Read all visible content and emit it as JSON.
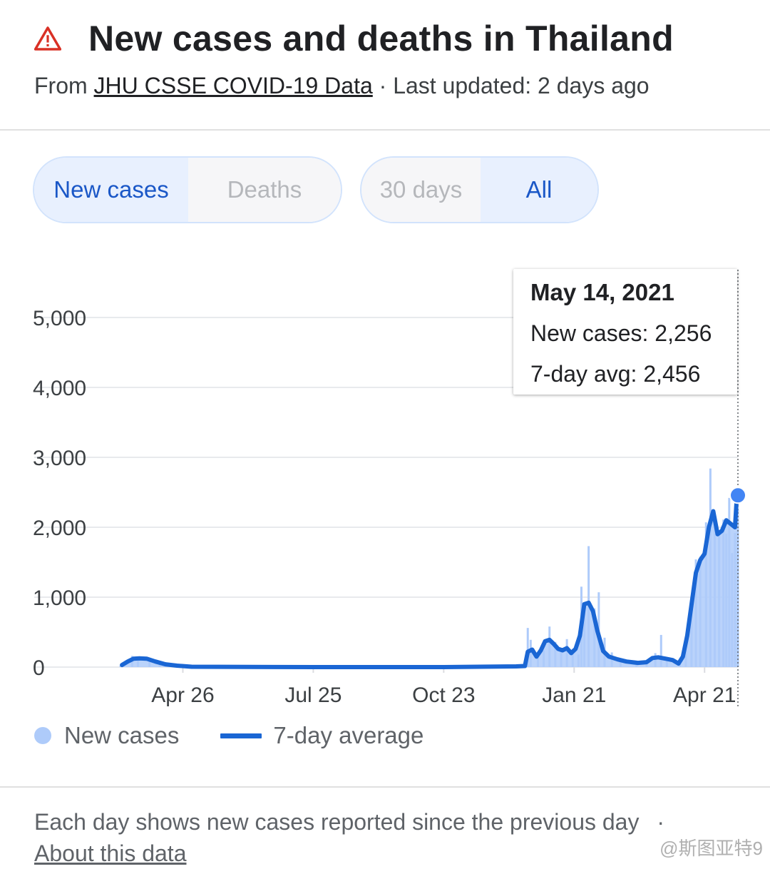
{
  "header": {
    "title": "New cases and deaths in Thailand",
    "source_prefix": "From",
    "source_link": "JHU CSSE COVID-19 Data",
    "updated": "· Last updated: 2 days ago"
  },
  "metric_toggle": {
    "options": [
      "New cases",
      "Deaths"
    ],
    "selected": "New cases"
  },
  "range_toggle": {
    "options": [
      "30 days",
      "All"
    ],
    "selected": "All"
  },
  "tooltip": {
    "date": "May 14, 2021",
    "new_cases": "New cases: 2,256",
    "avg": "7-day avg: 2,456"
  },
  "legend": {
    "new_cases": "New cases",
    "avg": "7-day average"
  },
  "footer": {
    "note": "Each day shows new cases reported since the previous day",
    "separator": "·",
    "link": "About this data"
  },
  "watermark": "@斯图亚特9",
  "colors": {
    "bars": "#aecbfa",
    "line": "#1a66d4",
    "accent": "#1a57c7",
    "warning": "#d93025"
  },
  "chart_data": {
    "type": "area",
    "title": "",
    "xlabel": "",
    "ylabel": "",
    "ylim": [
      0,
      5000
    ],
    "y_ticks": [
      0,
      1000,
      2000,
      3000,
      4000,
      5000
    ],
    "y_tick_labels": [
      "0",
      "1,000",
      "2,000",
      "3,000",
      "4,000",
      "5,000"
    ],
    "x_ticks": [
      "2020-04-26",
      "2020-07-25",
      "2020-10-23",
      "2021-01-21",
      "2021-04-21"
    ],
    "x_tick_labels": [
      "Apr 26",
      "Jul 25",
      "Oct 23",
      "Jan 21",
      "Apr 21"
    ],
    "grid": true,
    "legend_position": "bottom-left",
    "selected_date": "2021-05-14",
    "series": [
      {
        "name": "New cases",
        "kind": "bars",
        "points": [
          [
            "2020-03-14",
            20
          ],
          [
            "2020-03-22",
            160
          ],
          [
            "2020-03-26",
            110
          ],
          [
            "2020-04-03",
            100
          ],
          [
            "2020-04-10",
            60
          ],
          [
            "2020-12-20",
            560
          ],
          [
            "2020-12-22",
            390
          ],
          [
            "2020-12-27",
            200
          ],
          [
            "2020-12-31",
            240
          ],
          [
            "2021-01-04",
            580
          ],
          [
            "2021-01-08",
            360
          ],
          [
            "2021-01-12",
            260
          ],
          [
            "2021-01-16",
            400
          ],
          [
            "2021-01-20",
            260
          ],
          [
            "2021-01-24",
            180
          ],
          [
            "2021-01-26",
            1150
          ],
          [
            "2021-01-28",
            820
          ],
          [
            "2021-01-31",
            1730
          ],
          [
            "2021-02-04",
            840
          ],
          [
            "2021-02-07",
            1070
          ],
          [
            "2021-02-11",
            420
          ],
          [
            "2021-02-16",
            210
          ],
          [
            "2021-02-22",
            120
          ],
          [
            "2021-03-05",
            90
          ],
          [
            "2021-03-12",
            60
          ],
          [
            "2021-03-18",
            200
          ],
          [
            "2021-03-22",
            460
          ],
          [
            "2021-03-26",
            90
          ],
          [
            "2021-04-04",
            80
          ],
          [
            "2021-04-08",
            330
          ],
          [
            "2021-04-12",
            790
          ],
          [
            "2021-04-15",
            1540
          ],
          [
            "2021-04-18",
            1580
          ],
          [
            "2021-04-22",
            2070
          ],
          [
            "2021-04-25",
            2840
          ],
          [
            "2021-04-28",
            2010
          ],
          [
            "2021-05-01",
            1890
          ],
          [
            "2021-05-04",
            2110
          ],
          [
            "2021-05-06",
            1910
          ],
          [
            "2021-05-08",
            2420
          ],
          [
            "2021-05-10",
            1630
          ],
          [
            "2021-05-12",
            1920
          ],
          [
            "2021-05-14",
            2256
          ]
        ]
      },
      {
        "name": "7-day average",
        "kind": "line",
        "points": [
          [
            "2020-03-15",
            30
          ],
          [
            "2020-03-19",
            80
          ],
          [
            "2020-03-23",
            120
          ],
          [
            "2020-03-27",
            125
          ],
          [
            "2020-04-01",
            120
          ],
          [
            "2020-04-07",
            80
          ],
          [
            "2020-04-14",
            40
          ],
          [
            "2020-04-22",
            20
          ],
          [
            "2020-05-02",
            5
          ],
          [
            "2020-07-25",
            0
          ],
          [
            "2020-10-23",
            0
          ],
          [
            "2020-12-12",
            10
          ],
          [
            "2020-12-18",
            15
          ],
          [
            "2020-12-20",
            220
          ],
          [
            "2020-12-23",
            250
          ],
          [
            "2020-12-26",
            150
          ],
          [
            "2020-12-29",
            240
          ],
          [
            "2021-01-01",
            370
          ],
          [
            "2021-01-04",
            390
          ],
          [
            "2021-01-07",
            330
          ],
          [
            "2021-01-10",
            260
          ],
          [
            "2021-01-13",
            240
          ],
          [
            "2021-01-16",
            270
          ],
          [
            "2021-01-19",
            200
          ],
          [
            "2021-01-22",
            260
          ],
          [
            "2021-01-25",
            450
          ],
          [
            "2021-01-28",
            900
          ],
          [
            "2021-01-31",
            920
          ],
          [
            "2021-02-03",
            800
          ],
          [
            "2021-02-06",
            520
          ],
          [
            "2021-02-10",
            230
          ],
          [
            "2021-02-14",
            150
          ],
          [
            "2021-02-20",
            110
          ],
          [
            "2021-02-26",
            80
          ],
          [
            "2021-03-06",
            60
          ],
          [
            "2021-03-12",
            70
          ],
          [
            "2021-03-16",
            130
          ],
          [
            "2021-03-20",
            140
          ],
          [
            "2021-03-25",
            120
          ],
          [
            "2021-03-30",
            100
          ],
          [
            "2021-04-03",
            50
          ],
          [
            "2021-04-06",
            150
          ],
          [
            "2021-04-09",
            450
          ],
          [
            "2021-04-12",
            900
          ],
          [
            "2021-04-15",
            1350
          ],
          [
            "2021-04-18",
            1530
          ],
          [
            "2021-04-21",
            1620
          ],
          [
            "2021-04-24",
            2000
          ],
          [
            "2021-04-27",
            2230
          ],
          [
            "2021-04-30",
            1900
          ],
          [
            "2021-05-03",
            1950
          ],
          [
            "2021-05-06",
            2100
          ],
          [
            "2021-05-09",
            2050
          ],
          [
            "2021-05-12",
            2000
          ],
          [
            "2021-05-13",
            2350
          ],
          [
            "2021-05-14",
            2456
          ]
        ]
      }
    ]
  }
}
